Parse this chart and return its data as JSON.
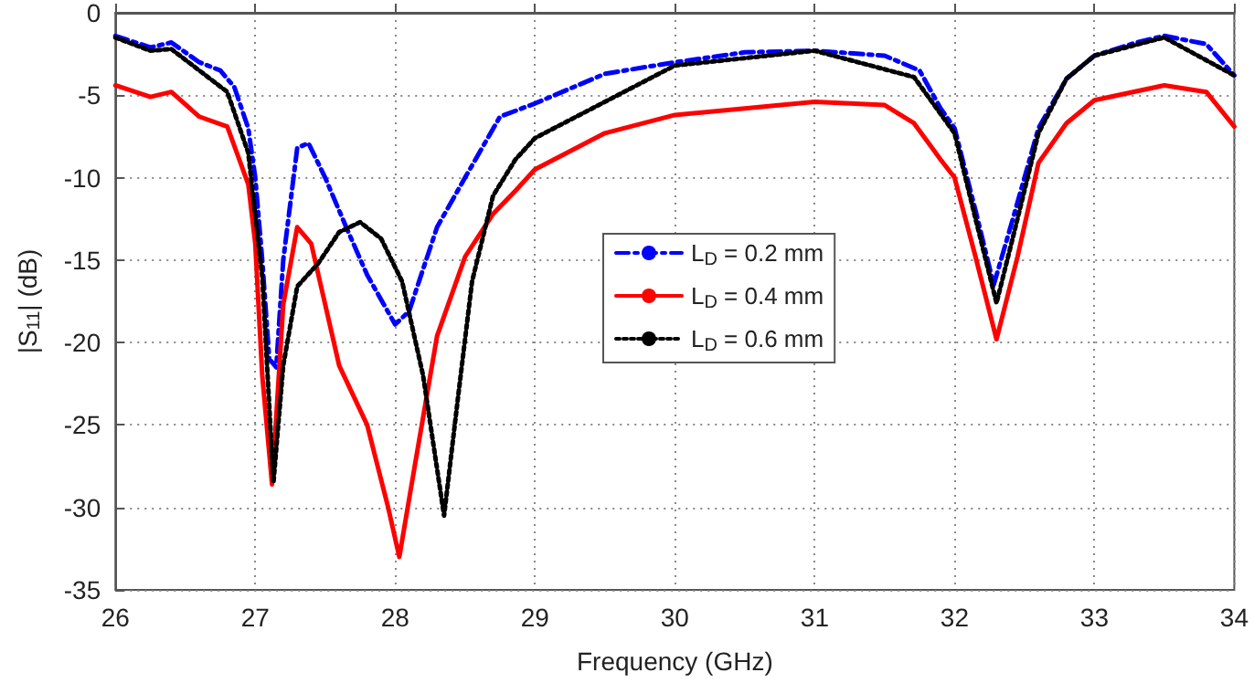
{
  "chart_data": {
    "type": "line",
    "xlabel": "Frequency (GHz)",
    "ylabel": "|S$_{11}$| (dB)",
    "xlim": [
      26,
      34
    ],
    "xticks": [
      26,
      27,
      28,
      29,
      30,
      31,
      32,
      33,
      34
    ],
    "ylim": [
      -35,
      0
    ],
    "yticks": [
      -35,
      -30,
      -25,
      -20,
      -15,
      -10,
      -5,
      0
    ],
    "grid": true,
    "legend": "center",
    "marker": "none",
    "series": [
      {
        "name": "L$_{D}$ = 0.2 mm",
        "color": "#0000ff",
        "line_style": "dashed",
        "x": [
          26,
          26.25,
          26.4,
          26.6,
          26.75,
          26.85,
          26.95,
          27,
          27.05,
          27.1,
          27.15,
          27.2,
          27.3,
          27.38,
          27.5,
          27.65,
          27.8,
          28,
          28.1,
          28.3,
          28.5,
          28.75,
          29,
          29.5,
          30,
          30.5,
          31,
          31.5,
          31.75,
          31.9,
          32,
          32.15,
          32.28,
          32.4,
          32.6,
          32.8,
          33,
          33.3,
          33.5,
          33.8,
          34
        ],
        "values": [
          -1.4,
          -2.1,
          -1.8,
          -3,
          -3.5,
          -4.5,
          -7,
          -10,
          -15,
          -21,
          -21.5,
          -15,
          -8.2,
          -7.9,
          -10,
          -13,
          -15.9,
          -18.9,
          -18.1,
          -13,
          -10,
          -6.3,
          -5.5,
          -3.7,
          -3,
          -2.4,
          -2.3,
          -2.6,
          -3.5,
          -5.8,
          -7,
          -12,
          -16.5,
          -13,
          -7,
          -4,
          -2.6,
          -1.8,
          -1.4,
          -1.9,
          -3.8
        ]
      },
      {
        "name": "L$_{D}$ = 0.4 mm",
        "color": "#ff0000",
        "line_style": "solid",
        "x": [
          26,
          26.25,
          26.4,
          26.6,
          26.8,
          26.95,
          27,
          27.05,
          27.12,
          27.2,
          27.3,
          27.4,
          27.6,
          27.8,
          27.95,
          28.03,
          28.15,
          28.3,
          28.5,
          28.7,
          28.86,
          29,
          29.5,
          30,
          31,
          31.5,
          31.71,
          31.9,
          32,
          32.15,
          32.3,
          32.45,
          32.6,
          32.8,
          33,
          33.5,
          33.8,
          34
        ],
        "values": [
          -4.4,
          -5.1,
          -4.8,
          -6.3,
          -6.9,
          -10.4,
          -14,
          -22,
          -28.6,
          -17.7,
          -13,
          -14,
          -21.4,
          -25,
          -30,
          -33,
          -27,
          -19.6,
          -14.8,
          -12.2,
          -10.8,
          -9.5,
          -7.3,
          -6.2,
          -5.4,
          -5.6,
          -6.7,
          -8.9,
          -10,
          -14.8,
          -19.8,
          -14.8,
          -9.1,
          -6.7,
          -5.3,
          -4.4,
          -4.8,
          -6.9
        ]
      },
      {
        "name": "L$_{D}$ = 0.6 mm",
        "color": "#000000",
        "line_style": "dotted",
        "x": [
          26,
          26.25,
          26.4,
          26.6,
          26.8,
          26.95,
          27.05,
          27.13,
          27.2,
          27.3,
          27.45,
          27.6,
          27.75,
          27.9,
          28.05,
          28.2,
          28.35,
          28.45,
          28.55,
          28.7,
          28.86,
          29,
          30,
          31,
          31.71,
          32,
          32.15,
          32.3,
          32.45,
          32.6,
          32.8,
          33,
          33.5,
          34
        ],
        "values": [
          -1.5,
          -2.3,
          -2.2,
          -3.5,
          -4.8,
          -8.5,
          -16,
          -28.5,
          -21.4,
          -16.6,
          -15.2,
          -13.3,
          -12.7,
          -13.7,
          -16.3,
          -22,
          -30.5,
          -23.3,
          -16.3,
          -11.1,
          -8.9,
          -7.6,
          -3.2,
          -2.3,
          -3.9,
          -7.3,
          -12.5,
          -17.6,
          -12.5,
          -7.3,
          -4,
          -2.6,
          -1.5,
          -3.8
        ]
      }
    ]
  }
}
